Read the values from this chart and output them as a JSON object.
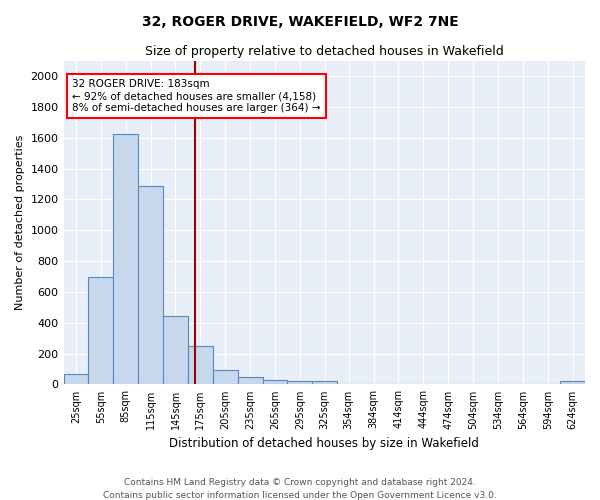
{
  "title": "32, ROGER DRIVE, WAKEFIELD, WF2 7NE",
  "subtitle": "Size of property relative to detached houses in Wakefield",
  "xlabel": "Distribution of detached houses by size in Wakefield",
  "ylabel": "Number of detached properties",
  "bar_color": "#c8d8ec",
  "bar_edge_color": "#5588bb",
  "background_color": "#e8eef8",
  "grid_color": "#ffffff",
  "annotation_text": "32 ROGER DRIVE: 183sqm\n← 92% of detached houses are smaller (4,158)\n8% of semi-detached houses are larger (364) →",
  "property_sqm": 183,
  "red_line_color": "#990000",
  "footnote": "Contains HM Land Registry data © Crown copyright and database right 2024.\nContains public sector information licensed under the Open Government Licence v3.0.",
  "bin_labels": [
    "25sqm",
    "55sqm",
    "85sqm",
    "115sqm",
    "145sqm",
    "175sqm",
    "205sqm",
    "235sqm",
    "265sqm",
    "295sqm",
    "325sqm",
    "354sqm",
    "384sqm",
    "414sqm",
    "444sqm",
    "474sqm",
    "504sqm",
    "534sqm",
    "564sqm",
    "594sqm",
    "624sqm"
  ],
  "bin_left_edges": [
    25,
    55,
    85,
    115,
    145,
    175,
    205,
    235,
    265,
    295,
    325,
    354,
    384,
    414,
    444,
    474,
    504,
    534,
    564,
    594,
    624
  ],
  "bar_heights": [
    65,
    695,
    1625,
    1285,
    445,
    250,
    95,
    50,
    28,
    20,
    20,
    0,
    0,
    0,
    0,
    0,
    0,
    0,
    0,
    0,
    20
  ],
  "ylim": [
    0,
    2100
  ],
  "yticks": [
    0,
    200,
    400,
    600,
    800,
    1000,
    1200,
    1400,
    1600,
    1800,
    2000
  ]
}
